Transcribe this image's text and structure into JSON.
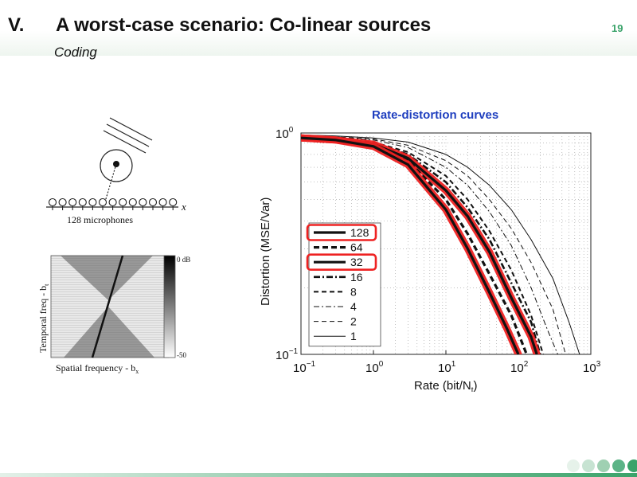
{
  "header": {
    "section_number": "V.",
    "title": "A worst-case scenario: Co-linear sources",
    "subtitle": "Coding",
    "page_number": "19"
  },
  "geometry_figure": {
    "axis_label": "x",
    "caption": "128 microphones"
  },
  "spectrum_figure": {
    "colorbar_top": "0 dB",
    "colorbar_bottom": "-50",
    "ylabel": "Temporal freq - b",
    "ylabel_sub": "t",
    "xlabel": "Spatial frequency - b",
    "xlabel_sub": "x"
  },
  "chart_title": "Rate-distortion curves",
  "chart_data": {
    "type": "line",
    "xlabel": "Rate (bit/N",
    "xlabel_sub": "t",
    "xlabel_end": ")",
    "ylabel": "Distortion (MSE/Var)",
    "x_scale": "log",
    "y_scale": "log",
    "xlim": [
      0.1,
      1000
    ],
    "ylim": [
      0.1,
      1
    ],
    "x_ticks": [
      {
        "base": "10",
        "exp": "−1"
      },
      {
        "base": "10",
        "exp": "0"
      },
      {
        "base": "10",
        "exp": "1"
      },
      {
        "base": "10",
        "exp": "2"
      },
      {
        "base": "10",
        "exp": "3"
      }
    ],
    "y_ticks": [
      {
        "base": "10",
        "exp": "0"
      },
      {
        "base": "10",
        "exp": "−1"
      }
    ],
    "grid": true,
    "legend_position": "lower-left",
    "highlight_color": "#ee2222",
    "series": [
      {
        "name": "128",
        "style": "solid-thick",
        "highlight": true,
        "points": [
          [
            0.1,
            0.95
          ],
          [
            0.3,
            0.93
          ],
          [
            1,
            0.87
          ],
          [
            3,
            0.72
          ],
          [
            10,
            0.45
          ],
          [
            20,
            0.3
          ],
          [
            40,
            0.19
          ],
          [
            70,
            0.13
          ],
          [
            100,
            0.1
          ]
        ]
      },
      {
        "name": "64",
        "style": "dashed-thick",
        "points": [
          [
            0.1,
            0.95
          ],
          [
            0.3,
            0.93
          ],
          [
            1,
            0.88
          ],
          [
            3,
            0.75
          ],
          [
            10,
            0.5
          ],
          [
            20,
            0.35
          ],
          [
            40,
            0.23
          ],
          [
            80,
            0.15
          ],
          [
            130,
            0.1
          ]
        ]
      },
      {
        "name": "32",
        "style": "solid-thick",
        "highlight": true,
        "points": [
          [
            0.1,
            0.95
          ],
          [
            0.3,
            0.93
          ],
          [
            1,
            0.89
          ],
          [
            3,
            0.77
          ],
          [
            10,
            0.55
          ],
          [
            20,
            0.42
          ],
          [
            40,
            0.29
          ],
          [
            80,
            0.18
          ],
          [
            150,
            0.12
          ],
          [
            180,
            0.1
          ]
        ]
      },
      {
        "name": "16",
        "style": "dashdot-thick",
        "points": [
          [
            0.1,
            0.96
          ],
          [
            0.3,
            0.94
          ],
          [
            1,
            0.9
          ],
          [
            3,
            0.8
          ],
          [
            10,
            0.6
          ],
          [
            20,
            0.46
          ],
          [
            40,
            0.33
          ],
          [
            80,
            0.21
          ],
          [
            150,
            0.14
          ],
          [
            200,
            0.1
          ]
        ]
      },
      {
        "name": "8",
        "style": "dashed-medium",
        "points": [
          [
            0.1,
            0.96
          ],
          [
            0.3,
            0.95
          ],
          [
            1,
            0.91
          ],
          [
            3,
            0.82
          ],
          [
            10,
            0.64
          ],
          [
            20,
            0.5
          ],
          [
            40,
            0.36
          ],
          [
            80,
            0.24
          ],
          [
            150,
            0.15
          ],
          [
            220,
            0.1
          ]
        ]
      },
      {
        "name": "4",
        "style": "dashdot-thin",
        "points": [
          [
            0.1,
            0.97
          ],
          [
            0.3,
            0.96
          ],
          [
            1,
            0.93
          ],
          [
            3,
            0.86
          ],
          [
            10,
            0.7
          ],
          [
            20,
            0.58
          ],
          [
            40,
            0.44
          ],
          [
            80,
            0.31
          ],
          [
            150,
            0.2
          ],
          [
            250,
            0.13
          ],
          [
            350,
            0.1
          ]
        ]
      },
      {
        "name": "2",
        "style": "dashed-thin",
        "points": [
          [
            0.1,
            0.97
          ],
          [
            0.3,
            0.96
          ],
          [
            1,
            0.94
          ],
          [
            3,
            0.88
          ],
          [
            10,
            0.75
          ],
          [
            20,
            0.64
          ],
          [
            40,
            0.5
          ],
          [
            80,
            0.37
          ],
          [
            150,
            0.26
          ],
          [
            300,
            0.16
          ],
          [
            450,
            0.1
          ]
        ]
      },
      {
        "name": "1",
        "style": "solid-thin",
        "points": [
          [
            0.1,
            0.98
          ],
          [
            0.3,
            0.97
          ],
          [
            1,
            0.95
          ],
          [
            3,
            0.91
          ],
          [
            10,
            0.8
          ],
          [
            20,
            0.7
          ],
          [
            40,
            0.58
          ],
          [
            80,
            0.45
          ],
          [
            150,
            0.33
          ],
          [
            300,
            0.22
          ],
          [
            500,
            0.14
          ],
          [
            700,
            0.1
          ]
        ]
      }
    ]
  },
  "theme": {
    "accent": "#3aa36a",
    "title_blue": "#1f3fbf",
    "dots": [
      "#e6f2ea",
      "#c7e3d2",
      "#9fd0b2",
      "#5cb487",
      "#3aa36a"
    ]
  }
}
